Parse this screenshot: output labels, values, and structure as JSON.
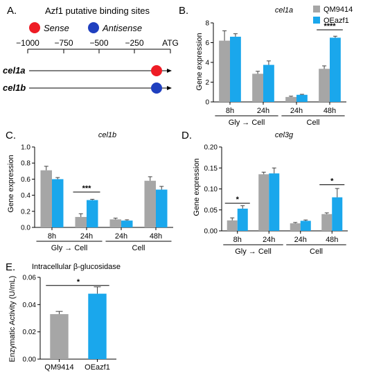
{
  "colors": {
    "series1": "#a6a6a6",
    "series2": "#1aa7ec",
    "error": "#404040",
    "sense": "#ee1c25",
    "antisense": "#1f3fbf"
  },
  "legend": {
    "items": [
      "QM9414",
      "OEazf1"
    ]
  },
  "panel_a": {
    "letter": "A.",
    "title": "Azf1 putative binding sites",
    "legend": {
      "sense": "Sense",
      "antisense": "Antisense"
    },
    "scale_ticks": [
      "−1000",
      "−750",
      "−500",
      "−250",
      "ATG"
    ],
    "tracks": [
      {
        "label": "cel1a",
        "site": "sense"
      },
      {
        "label": "cel1b",
        "site": "antisense"
      }
    ]
  },
  "chart_data": [
    {
      "id": "B",
      "letter": "B.",
      "type": "bar",
      "title": "cel1a",
      "ylabel": "Gene expression",
      "ylim": [
        0,
        8
      ],
      "yticks": [
        "0",
        "2",
        "4",
        "6",
        "8"
      ],
      "categories": [
        "8h",
        "24h",
        "24h",
        "48h"
      ],
      "groups": [
        {
          "label": "Gly → Cell",
          "span": [
            0,
            1
          ]
        },
        {
          "label": "Cell",
          "span": [
            2,
            3
          ]
        }
      ],
      "series": [
        {
          "name": "QM9414",
          "values": [
            6.2,
            2.85,
            0.5,
            3.35
          ],
          "errors": [
            1.0,
            0.25,
            0.08,
            0.3
          ]
        },
        {
          "name": "OEazf1",
          "values": [
            6.6,
            3.75,
            0.72,
            6.5
          ],
          "errors": [
            0.3,
            0.4,
            0.05,
            0.15
          ]
        }
      ],
      "significance": [
        {
          "category": 3,
          "label": "****",
          "y": 7.3
        }
      ]
    },
    {
      "id": "C",
      "letter": "C.",
      "type": "bar",
      "title": "cel1b",
      "ylabel": "Gene expression",
      "ylim": [
        0,
        1.0
      ],
      "yticks": [
        "0.0",
        "0.2",
        "0.4",
        "0.6",
        "0.8",
        "1.0"
      ],
      "categories": [
        "8h",
        "24h",
        "24h",
        "48h"
      ],
      "groups": [
        {
          "label": "Gly → Cell",
          "span": [
            0,
            1
          ]
        },
        {
          "label": "Cell",
          "span": [
            2,
            3
          ]
        }
      ],
      "series": [
        {
          "name": "QM9414",
          "values": [
            0.71,
            0.13,
            0.1,
            0.58
          ],
          "errors": [
            0.05,
            0.04,
            0.015,
            0.05
          ]
        },
        {
          "name": "OEazf1",
          "values": [
            0.6,
            0.34,
            0.085,
            0.47
          ],
          "errors": [
            0.02,
            0.01,
            0.01,
            0.04
          ]
        }
      ],
      "significance": [
        {
          "category": 1,
          "label": "***",
          "y": 0.44
        }
      ]
    },
    {
      "id": "D",
      "letter": "D.",
      "type": "bar",
      "title": "cel3g",
      "ylabel": "Gene expression",
      "ylim": [
        0,
        0.2
      ],
      "yticks": [
        "0.00",
        "0.05",
        "0.10",
        "0.15",
        "0.20"
      ],
      "categories": [
        "8h",
        "24h",
        "24h",
        "48h"
      ],
      "groups": [
        {
          "label": "Gly → Cell",
          "span": [
            0,
            1
          ]
        },
        {
          "label": "Cell",
          "span": [
            2,
            3
          ]
        }
      ],
      "series": [
        {
          "name": "QM9414",
          "values": [
            0.025,
            0.135,
            0.018,
            0.04
          ],
          "errors": [
            0.006,
            0.005,
            0.002,
            0.003
          ]
        },
        {
          "name": "OEazf1",
          "values": [
            0.053,
            0.137,
            0.024,
            0.08
          ],
          "errors": [
            0.007,
            0.013,
            0.002,
            0.021
          ]
        }
      ],
      "significance": [
        {
          "category": 0,
          "label": "*",
          "y": 0.066
        },
        {
          "category": 3,
          "label": "*",
          "y": 0.11
        }
      ]
    },
    {
      "id": "E",
      "letter": "E.",
      "type": "bar",
      "title": "Intracellular β-glucosidase",
      "ylabel": "Enzymatic Activity (U/mL)",
      "ylim": [
        0,
        0.06
      ],
      "yticks": [
        "0.00",
        "0.02",
        "0.04",
        "0.06"
      ],
      "categories": [
        "QM9414",
        "OEazf1"
      ],
      "values": [
        0.033,
        0.048
      ],
      "errors": [
        0.002,
        0.005
      ],
      "significance": [
        {
          "label": "*",
          "y": 0.054
        }
      ]
    }
  ]
}
